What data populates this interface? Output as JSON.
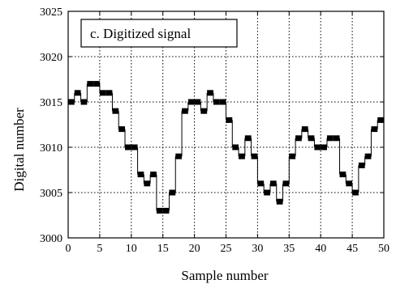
{
  "chart_data": {
    "type": "step",
    "title": "c. Digitized signal",
    "xlabel": "Sample number",
    "ylabel": "Digital number",
    "xlim": [
      0,
      50
    ],
    "ylim": [
      3000,
      3025
    ],
    "x_ticks": [
      0,
      5,
      10,
      15,
      20,
      25,
      30,
      35,
      40,
      45,
      50
    ],
    "y_ticks": [
      3000,
      3005,
      3010,
      3015,
      3020,
      3025
    ],
    "grid": true,
    "grid_style": "dotted",
    "x": [
      0,
      1,
      2,
      3,
      4,
      5,
      6,
      7,
      8,
      9,
      10,
      11,
      12,
      13,
      14,
      15,
      16,
      17,
      18,
      19,
      20,
      21,
      22,
      23,
      24,
      25,
      26,
      27,
      28,
      29,
      30,
      31,
      32,
      33,
      34,
      35,
      36,
      37,
      38,
      39,
      40,
      41,
      42,
      43,
      44,
      45,
      46,
      47,
      48,
      49,
      50
    ],
    "values": [
      3015,
      3016,
      3015,
      3017,
      3017,
      3016,
      3016,
      3014,
      3012,
      3010,
      3010,
      3007,
      3006,
      3007,
      3003,
      3003,
      3005,
      3009,
      3014,
      3015,
      3015,
      3014,
      3016,
      3015,
      3015,
      3013,
      3010,
      3009,
      3011,
      3009,
      3006,
      3005,
      3006,
      3004,
      3006,
      3009,
      3011,
      3012,
      3011,
      3010,
      3010,
      3011,
      3011,
      3007,
      3006,
      3005,
      3008,
      3009,
      3012,
      3013,
      3013
    ]
  }
}
